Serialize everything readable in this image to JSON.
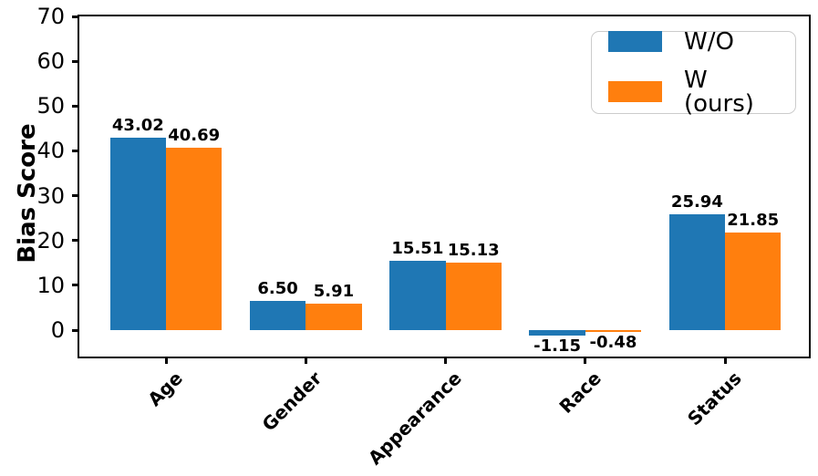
{
  "chart_data": {
    "type": "bar",
    "title": "",
    "xlabel": "",
    "ylabel": "Bias Score",
    "categories": [
      "Age",
      "Gender",
      "Appearance",
      "Race",
      "Status"
    ],
    "series": [
      {
        "name": "W/O",
        "color": "#1f77b4",
        "values": [
          43.02,
          6.5,
          15.51,
          -1.15,
          25.94
        ]
      },
      {
        "name": "W (ours)",
        "color": "#ff7f0e",
        "values": [
          40.69,
          5.91,
          15.13,
          -0.48,
          21.85
        ]
      }
    ],
    "value_label_decimals": 2,
    "yticks": [
      0,
      10,
      20,
      30,
      40,
      50,
      60,
      70
    ],
    "ylim": [
      -5.9,
      70
    ],
    "xlim": [
      -0.62,
      4.6
    ],
    "bar_width": 0.4,
    "grid": false,
    "legend": {
      "position": "upper right",
      "items": [
        "W/O",
        "W (ours)"
      ]
    }
  }
}
